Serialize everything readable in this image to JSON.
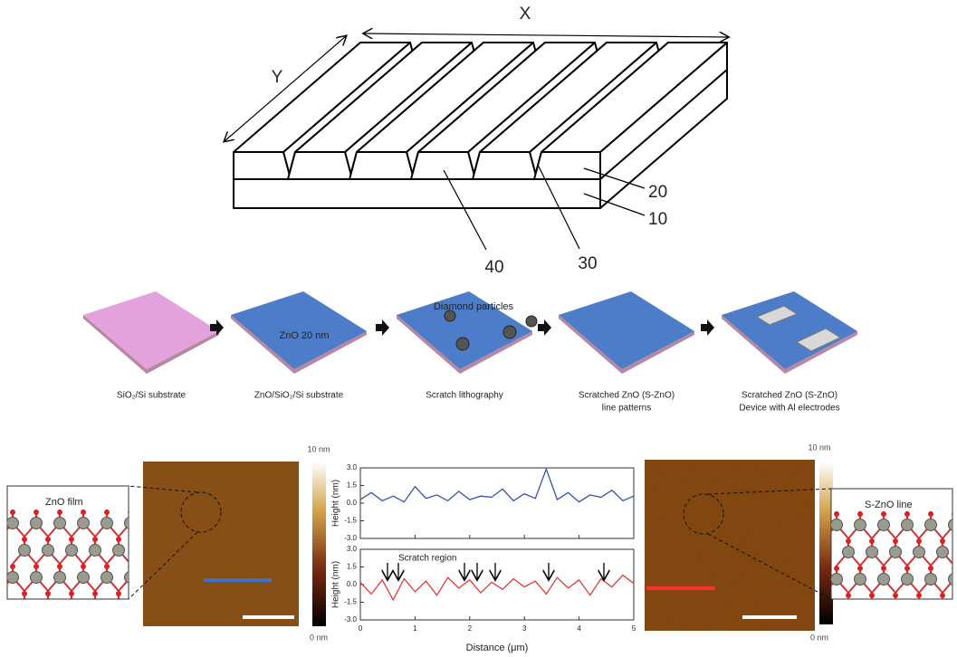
{
  "structure": {
    "x_label": "X",
    "y_label": "Y",
    "callouts": [
      "20",
      "10",
      "40",
      "30"
    ]
  },
  "process": {
    "particles": "Diamond particles",
    "film": "ZnO 20 nm",
    "steps": [
      [
        "SiO₂/Si substrate"
      ],
      [
        "ZnO/SiO₂/Si substrate"
      ],
      [
        "Scratch lithography"
      ],
      [
        "Scratched ZnO (S-ZnO)",
        "line patterns"
      ],
      [
        "Scratched ZnO (S-ZnO)",
        "Device with Al electrodes"
      ]
    ]
  },
  "afm": {
    "left": {
      "label": "ZnO film",
      "scale_max": "10 nm",
      "scale_min": "0 nm"
    },
    "right": {
      "label": "S-ZnO line",
      "scale_max": "10 nm",
      "scale_min": "0 nm"
    }
  },
  "profile": {
    "y_label": "Height (nm)",
    "x_label": "Distance (μm)",
    "annotation": "Scratch region",
    "xlim": [
      0,
      5
    ],
    "ylim": [
      -3,
      3
    ],
    "xticks": [
      0,
      1,
      2,
      3,
      4,
      5
    ],
    "yticks": [
      {
        "value": 3,
        "label": "3.0"
      },
      {
        "value": 1.5,
        "label": "1.5"
      },
      {
        "value": 0,
        "label": "0.0"
      },
      {
        "value": -1.5,
        "label": "-1.5"
      },
      {
        "value": -3,
        "label": "-3.0"
      }
    ],
    "x": [
      0,
      0.2,
      0.4,
      0.6,
      0.8,
      1,
      1.2,
      1.4,
      1.6,
      1.8,
      2,
      2.2,
      2.4,
      2.6,
      2.8,
      3,
      3.2,
      3.4,
      3.6,
      3.8,
      4,
      4.2,
      4.4,
      4.6,
      4.8,
      5
    ],
    "series": [
      {
        "color": "#3b4fae",
        "values": [
          0.3,
          0.9,
          0.2,
          0.6,
          0.1,
          1.4,
          0.4,
          0.7,
          0.2,
          1.0,
          0.3,
          0.6,
          0.5,
          1.2,
          0.2,
          0.8,
          0.4,
          2.9,
          0.3,
          0.9,
          0.1,
          0.7,
          0.5,
          1.1,
          0.2,
          0.6
        ]
      },
      {
        "color": "#e23a3a",
        "values": [
          0.2,
          -0.8,
          0.4,
          -1.3,
          0.5,
          -0.6,
          0.3,
          -0.9,
          0.6,
          -0.3,
          0.4,
          -0.7,
          0.2,
          -0.4,
          0.5,
          -0.2,
          0.3,
          -0.8,
          0.6,
          -0.3,
          0.4,
          -0.9,
          0.5,
          -0.2,
          0.8,
          0.1
        ]
      }
    ]
  }
}
